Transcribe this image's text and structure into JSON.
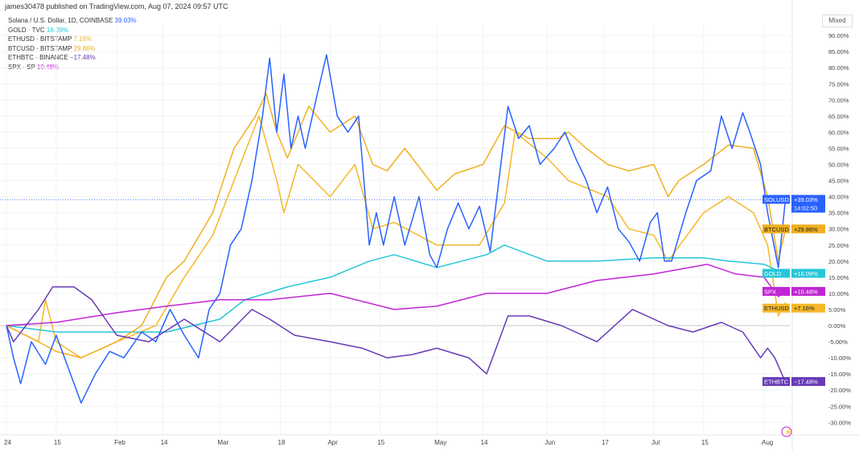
{
  "header": {
    "published": "james30478 published on TradingView.com, Aug 07, 2024 09:57 UTC",
    "scale_mode": "Mixed"
  },
  "legend": [
    {
      "label": "Solana / U.S. Dollar, 1D, COINBASE",
      "value": "39.03%",
      "color": "#2962ff"
    },
    {
      "label": "GOLD · TVC",
      "value": "16.09%",
      "color": "#26c6da"
    },
    {
      "label": "ETHUSD · BITSTAMP",
      "value": "7.16%",
      "color": "#f6b82a"
    },
    {
      "label": "BTCUSD · BITSTAMP",
      "value": "29.86%",
      "color": "#f0b020"
    },
    {
      "label": "ETHBTC · BINANCE",
      "value": "−17.48%",
      "color": "#673ab7"
    },
    {
      "label": "SPX · SP",
      "value": "10.48%",
      "color": "#c026d3"
    }
  ],
  "chart_data": {
    "type": "line",
    "year": 2024,
    "yaxis": {
      "min": -30,
      "max": 90,
      "step": 5,
      "unit": "%",
      "position": "right"
    },
    "xticks": [
      {
        "date": "01-01",
        "label": "24"
      },
      {
        "date": "01-15",
        "label": "15"
      },
      {
        "date": "02-01",
        "label": "Feb"
      },
      {
        "date": "02-14",
        "label": "14"
      },
      {
        "date": "03-01",
        "label": "Mar"
      },
      {
        "date": "03-18",
        "label": "18"
      },
      {
        "date": "04-01",
        "label": "Apr"
      },
      {
        "date": "04-15",
        "label": "15"
      },
      {
        "date": "05-01",
        "label": "May"
      },
      {
        "date": "05-14",
        "label": "14"
      },
      {
        "date": "06-01",
        "label": "Jun"
      },
      {
        "date": "06-17",
        "label": "17"
      },
      {
        "date": "07-01",
        "label": "Jul"
      },
      {
        "date": "07-15",
        "label": "15"
      },
      {
        "date": "08-01",
        "label": "Aug"
      }
    ],
    "grid": true,
    "series": [
      {
        "name": "SOLUSD",
        "color": "#2962ff",
        "label": "+39.03%",
        "extra": "14:02:50",
        "last": 39.03,
        "points": [
          [
            "01-01",
            0
          ],
          [
            "01-03",
            -10
          ],
          [
            "01-05",
            -18
          ],
          [
            "01-08",
            -5
          ],
          [
            "01-12",
            -12
          ],
          [
            "01-15",
            -3
          ],
          [
            "01-19",
            -15
          ],
          [
            "01-22",
            -24
          ],
          [
            "01-26",
            -15
          ],
          [
            "01-30",
            -8
          ],
          [
            "02-03",
            -10
          ],
          [
            "02-08",
            -2
          ],
          [
            "02-12",
            -5
          ],
          [
            "02-16",
            5
          ],
          [
            "02-20",
            -3
          ],
          [
            "02-24",
            -10
          ],
          [
            "02-27",
            5
          ],
          [
            "03-01",
            10
          ],
          [
            "03-04",
            25
          ],
          [
            "03-07",
            30
          ],
          [
            "03-10",
            45
          ],
          [
            "03-13",
            65
          ],
          [
            "03-15",
            83
          ],
          [
            "03-17",
            60
          ],
          [
            "03-19",
            78
          ],
          [
            "03-21",
            55
          ],
          [
            "03-23",
            65
          ],
          [
            "03-25",
            55
          ],
          [
            "03-28",
            70
          ],
          [
            "03-31",
            84
          ],
          [
            "04-03",
            65
          ],
          [
            "04-06",
            60
          ],
          [
            "04-09",
            65
          ],
          [
            "04-12",
            25
          ],
          [
            "04-14",
            35
          ],
          [
            "04-16",
            25
          ],
          [
            "04-19",
            40
          ],
          [
            "04-22",
            25
          ],
          [
            "04-26",
            40
          ],
          [
            "04-29",
            22
          ],
          [
            "05-01",
            18
          ],
          [
            "05-04",
            30
          ],
          [
            "05-07",
            38
          ],
          [
            "05-10",
            30
          ],
          [
            "05-13",
            37
          ],
          [
            "05-16",
            23
          ],
          [
            "05-19",
            50
          ],
          [
            "05-21",
            68
          ],
          [
            "05-24",
            58
          ],
          [
            "05-27",
            62
          ],
          [
            "05-30",
            50
          ],
          [
            "06-03",
            55
          ],
          [
            "06-06",
            60
          ],
          [
            "06-09",
            52
          ],
          [
            "06-12",
            45
          ],
          [
            "06-15",
            35
          ],
          [
            "06-18",
            43
          ],
          [
            "06-21",
            30
          ],
          [
            "06-24",
            26
          ],
          [
            "06-27",
            20
          ],
          [
            "06-30",
            32
          ],
          [
            "07-02",
            35
          ],
          [
            "07-04",
            20
          ],
          [
            "07-06",
            20
          ],
          [
            "07-10",
            35
          ],
          [
            "07-13",
            45
          ],
          [
            "07-17",
            48
          ],
          [
            "07-20",
            65
          ],
          [
            "07-23",
            55
          ],
          [
            "07-26",
            66
          ],
          [
            "07-28",
            60
          ],
          [
            "07-31",
            50
          ],
          [
            "08-02",
            35
          ],
          [
            "08-05",
            18
          ],
          [
            "08-07",
            39.03
          ]
        ]
      },
      {
        "name": "BTCUSD",
        "color": "#f0b020",
        "label": "+29.86%",
        "last": 29.86,
        "points": [
          [
            "01-01",
            0
          ],
          [
            "01-10",
            -5
          ],
          [
            "01-15",
            -8
          ],
          [
            "01-22",
            -10
          ],
          [
            "02-01",
            -5
          ],
          [
            "02-08",
            0
          ],
          [
            "02-15",
            15
          ],
          [
            "02-20",
            20
          ],
          [
            "02-28",
            35
          ],
          [
            "03-05",
            55
          ],
          [
            "03-11",
            65
          ],
          [
            "03-14",
            72
          ],
          [
            "03-17",
            60
          ],
          [
            "03-20",
            52
          ],
          [
            "03-26",
            68
          ],
          [
            "04-01",
            60
          ],
          [
            "04-08",
            65
          ],
          [
            "04-13",
            50
          ],
          [
            "04-17",
            48
          ],
          [
            "04-22",
            55
          ],
          [
            "05-01",
            42
          ],
          [
            "05-06",
            47
          ],
          [
            "05-14",
            50
          ],
          [
            "05-20",
            62
          ],
          [
            "05-27",
            58
          ],
          [
            "06-04",
            58
          ],
          [
            "06-07",
            60
          ],
          [
            "06-12",
            55
          ],
          [
            "06-18",
            50
          ],
          [
            "06-24",
            48
          ],
          [
            "07-01",
            50
          ],
          [
            "07-05",
            40
          ],
          [
            "07-08",
            45
          ],
          [
            "07-15",
            50
          ],
          [
            "07-22",
            56
          ],
          [
            "07-29",
            55
          ],
          [
            "08-02",
            40
          ],
          [
            "08-05",
            20
          ],
          [
            "08-07",
            29.86
          ]
        ]
      },
      {
        "name": "GOLD",
        "color": "#26c6da",
        "label": "+16.09%",
        "last": 16.09,
        "points": [
          [
            "01-01",
            0
          ],
          [
            "01-15",
            -2
          ],
          [
            "02-01",
            -2
          ],
          [
            "02-15",
            -2
          ],
          [
            "03-01",
            2
          ],
          [
            "03-08",
            8
          ],
          [
            "03-20",
            12
          ],
          [
            "04-01",
            15
          ],
          [
            "04-12",
            20
          ],
          [
            "04-19",
            22
          ],
          [
            "05-01",
            18
          ],
          [
            "05-15",
            22
          ],
          [
            "05-20",
            25
          ],
          [
            "06-01",
            20
          ],
          [
            "06-15",
            20
          ],
          [
            "07-01",
            21
          ],
          [
            "07-15",
            21
          ],
          [
            "07-22",
            20
          ],
          [
            "08-01",
            19
          ],
          [
            "08-07",
            16.09
          ]
        ]
      },
      {
        "name": "SPX",
        "color": "#c026d3",
        "label": "+10.48%",
        "last": 10.48,
        "points": [
          [
            "01-01",
            0
          ],
          [
            "01-15",
            1
          ],
          [
            "02-01",
            4
          ],
          [
            "02-15",
            6
          ],
          [
            "03-01",
            8
          ],
          [
            "03-15",
            8
          ],
          [
            "04-01",
            10
          ],
          [
            "04-19",
            5
          ],
          [
            "05-01",
            6
          ],
          [
            "05-15",
            10
          ],
          [
            "06-01",
            10
          ],
          [
            "06-15",
            14
          ],
          [
            "07-01",
            16
          ],
          [
            "07-16",
            19
          ],
          [
            "07-24",
            16
          ],
          [
            "08-01",
            15
          ],
          [
            "08-05",
            9
          ],
          [
            "08-07",
            10.48
          ]
        ]
      },
      {
        "name": "ETHUSD",
        "color": "#f6b82a",
        "label": "+7.16%",
        "last": 7.16,
        "points": [
          [
            "01-01",
            0
          ],
          [
            "01-10",
            -5
          ],
          [
            "01-12",
            8
          ],
          [
            "01-15",
            -5
          ],
          [
            "01-22",
            -10
          ],
          [
            "02-01",
            -5
          ],
          [
            "02-12",
            0
          ],
          [
            "02-20",
            15
          ],
          [
            "02-28",
            28
          ],
          [
            "03-05",
            45
          ],
          [
            "03-12",
            65
          ],
          [
            "03-17",
            45
          ],
          [
            "03-19",
            35
          ],
          [
            "03-23",
            50
          ],
          [
            "04-01",
            40
          ],
          [
            "04-08",
            50
          ],
          [
            "04-13",
            30
          ],
          [
            "04-19",
            32
          ],
          [
            "05-01",
            25
          ],
          [
            "05-13",
            25
          ],
          [
            "05-20",
            38
          ],
          [
            "05-23",
            60
          ],
          [
            "06-01",
            52
          ],
          [
            "06-07",
            45
          ],
          [
            "06-18",
            40
          ],
          [
            "06-24",
            30
          ],
          [
            "07-01",
            28
          ],
          [
            "07-05",
            20
          ],
          [
            "07-15",
            35
          ],
          [
            "07-22",
            40
          ],
          [
            "07-29",
            35
          ],
          [
            "08-02",
            25
          ],
          [
            "08-05",
            3
          ],
          [
            "08-07",
            7.16
          ]
        ]
      },
      {
        "name": "ETHBTC",
        "color": "#673ab7",
        "label": "−17.48%",
        "last": -17.48,
        "points": [
          [
            "01-01",
            0
          ],
          [
            "01-03",
            -5
          ],
          [
            "01-10",
            5
          ],
          [
            "01-14",
            12
          ],
          [
            "01-20",
            12
          ],
          [
            "01-25",
            8
          ],
          [
            "02-01",
            -3
          ],
          [
            "02-10",
            -5
          ],
          [
            "02-20",
            2
          ],
          [
            "03-01",
            -5
          ],
          [
            "03-10",
            5
          ],
          [
            "03-15",
            2
          ],
          [
            "03-22",
            -3
          ],
          [
            "04-01",
            -5
          ],
          [
            "04-10",
            -7
          ],
          [
            "04-17",
            -10
          ],
          [
            "04-24",
            -9
          ],
          [
            "05-01",
            -7
          ],
          [
            "05-10",
            -10
          ],
          [
            "05-15",
            -15
          ],
          [
            "05-21",
            3
          ],
          [
            "05-27",
            3
          ],
          [
            "06-05",
            0
          ],
          [
            "06-15",
            -5
          ],
          [
            "06-25",
            5
          ],
          [
            "07-05",
            0
          ],
          [
            "07-12",
            -2
          ],
          [
            "07-20",
            1
          ],
          [
            "07-26",
            -2
          ],
          [
            "07-31",
            -10
          ],
          [
            "08-02",
            -7
          ],
          [
            "08-04",
            -10
          ],
          [
            "08-07",
            -17.48
          ]
        ]
      }
    ]
  }
}
